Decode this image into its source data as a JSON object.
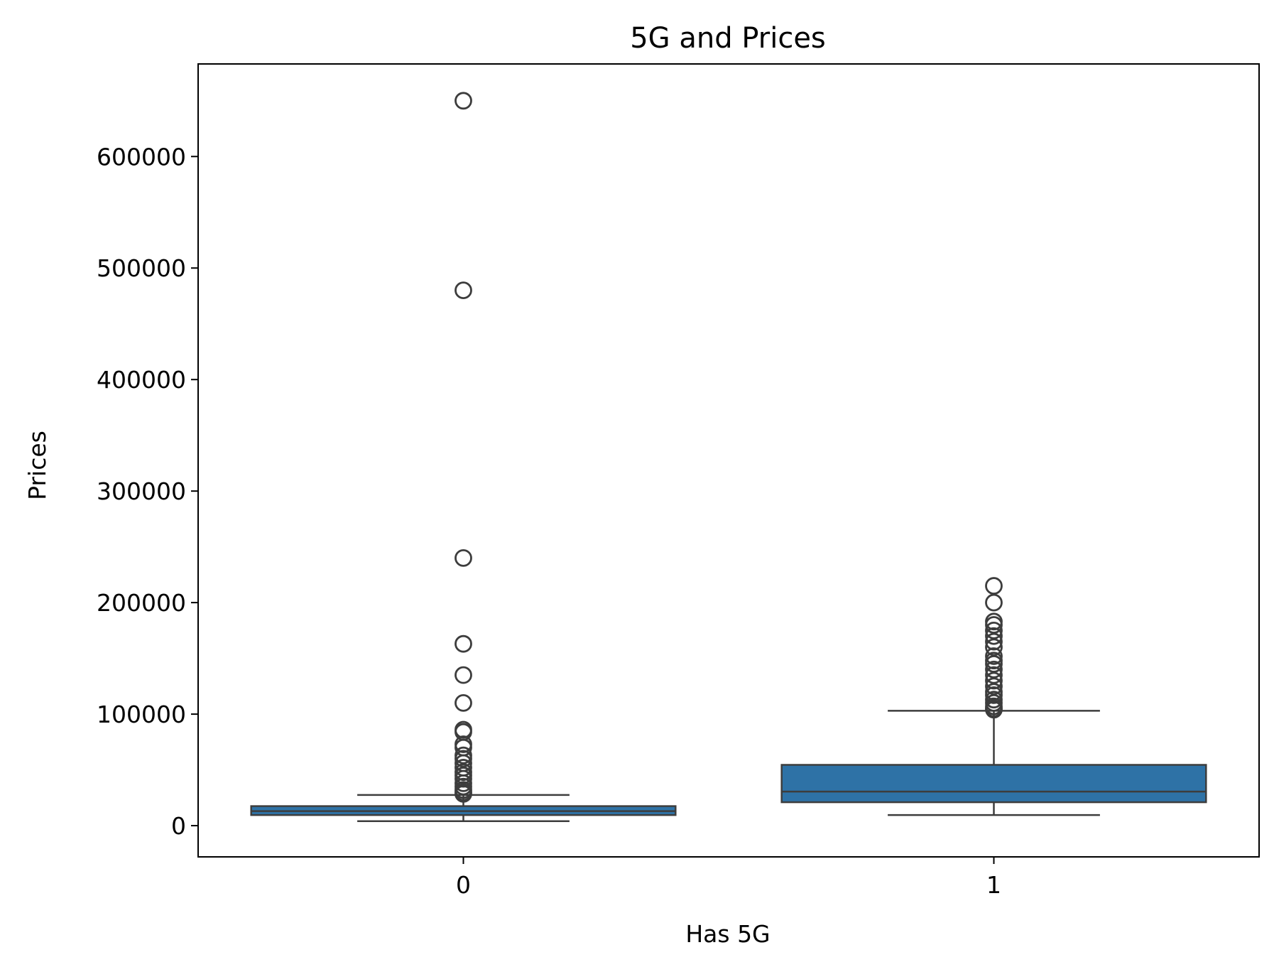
{
  "chart_data": {
    "type": "box",
    "title": "5G and Prices",
    "xlabel": "Has 5G",
    "ylabel": "Prices",
    "categories": [
      "0",
      "1"
    ],
    "yticks": [
      0,
      100000,
      200000,
      300000,
      400000,
      500000,
      600000
    ],
    "ytick_labels": [
      "0",
      "100000",
      "200000",
      "300000",
      "400000",
      "500000",
      "600000"
    ],
    "ylim": [
      -28000,
      683000
    ],
    "grid": false,
    "legend": "none",
    "box_color": "#2e72a6",
    "line_color": "#3d3d3d",
    "boxes": [
      {
        "category": "0",
        "whisker_low": 4000,
        "q1": 9500,
        "median": 13000,
        "q3": 17500,
        "whisker_high": 27500,
        "outliers": [
          650000,
          480000,
          240000,
          163000,
          135000,
          110000,
          86000,
          84000,
          73000,
          70000,
          63000,
          60000,
          56000,
          52000,
          48000,
          45000,
          42000,
          38000,
          35000,
          32000,
          30000,
          28500
        ]
      },
      {
        "category": "1",
        "whisker_low": 9500,
        "q1": 21000,
        "median": 30500,
        "q3": 54500,
        "whisker_high": 103000,
        "outliers": [
          215000,
          200000,
          183000,
          180000,
          175000,
          170000,
          165000,
          160000,
          152000,
          148000,
          145000,
          140000,
          135000,
          130000,
          125000,
          120000,
          117000,
          113000,
          110000,
          107000,
          105000,
          104000
        ]
      }
    ]
  }
}
